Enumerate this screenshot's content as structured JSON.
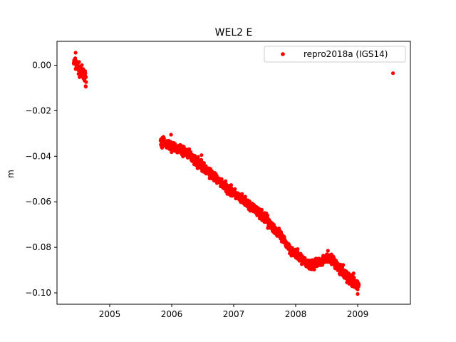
{
  "chart_data": {
    "type": "scatter",
    "title": "WEL2 E",
    "xlabel": "",
    "ylabel": "m",
    "xlim": [
      2004.15,
      2009.85
    ],
    "ylim": [
      -0.105,
      0.0105
    ],
    "x_ticks": [
      2005,
      2006,
      2007,
      2008,
      2009
    ],
    "x_tick_labels": [
      "2005",
      "2006",
      "2007",
      "2008",
      "2009"
    ],
    "y_ticks": [
      0.0,
      -0.02,
      -0.04,
      -0.06,
      -0.08,
      -0.1
    ],
    "y_tick_labels": [
      "0.00",
      "−0.02",
      "−0.04",
      "−0.06",
      "−0.08",
      "−0.10"
    ],
    "grid": false,
    "legend_position": "top-right",
    "series": [
      {
        "name": "repro2018a (IGS14)",
        "color": "#ff0000",
        "marker": "circle",
        "segments": [
          {
            "x_start": 2004.42,
            "x_end": 2004.62,
            "y_start": 0.0015,
            "y_end": -0.006,
            "noise": 0.002
          },
          {
            "x_start": 2005.82,
            "x_end": 2006.25,
            "y_start": -0.0335,
            "y_end": -0.0385,
            "noise": 0.0015
          },
          {
            "x_start": 2006.25,
            "x_end": 2006.85,
            "y_start": -0.0385,
            "y_end": -0.053,
            "noise": 0.0015
          },
          {
            "x_start": 2006.85,
            "x_end": 2007.55,
            "y_start": -0.053,
            "y_end": -0.068,
            "noise": 0.0015
          },
          {
            "x_start": 2007.55,
            "x_end": 2007.95,
            "y_start": -0.068,
            "y_end": -0.082,
            "noise": 0.0015
          },
          {
            "x_start": 2007.95,
            "x_end": 2008.25,
            "y_start": -0.082,
            "y_end": -0.088,
            "noise": 0.0015
          },
          {
            "x_start": 2008.25,
            "x_end": 2008.55,
            "y_start": -0.088,
            "y_end": -0.084,
            "noise": 0.0015
          },
          {
            "x_start": 2008.55,
            "x_end": 2008.75,
            "y_start": -0.084,
            "y_end": -0.091,
            "noise": 0.0015
          },
          {
            "x_start": 2008.75,
            "x_end": 2009.02,
            "y_start": -0.091,
            "y_end": -0.097,
            "noise": 0.002
          }
        ],
        "points": [
          {
            "x": 2004.45,
            "y": 0.0055
          },
          {
            "x": 2005.99,
            "y": -0.0305
          },
          {
            "x": 2006.48,
            "y": -0.0395
          },
          {
            "x": 2007.55,
            "y": -0.0715
          },
          {
            "x": 2008.52,
            "y": -0.0815
          },
          {
            "x": 2009.0,
            "y": -0.1005
          },
          {
            "x": 2009.57,
            "y": -0.0035
          }
        ]
      }
    ]
  }
}
